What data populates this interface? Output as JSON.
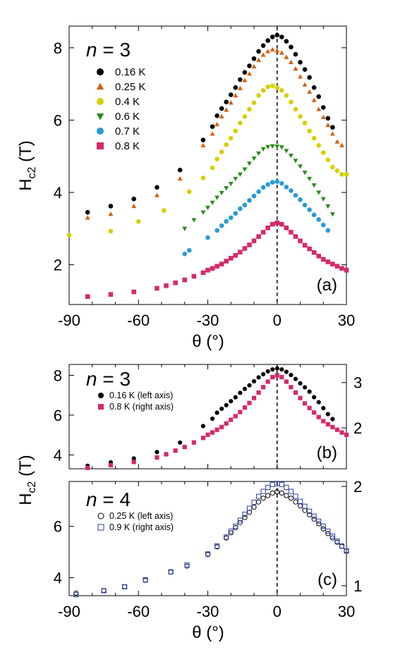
{
  "chart_data": [
    {
      "panel": "(a)",
      "type": "scatter",
      "annotation_prefix": "n",
      "annotation_value": "= 3",
      "xlabel": "θ (°)",
      "ylabel": "Hc2 (T)",
      "xlim": [
        -90,
        30
      ],
      "ylim": [
        0.9,
        8.6
      ],
      "xticks": [
        "-90",
        "-60",
        "-30",
        "0",
        "30"
      ],
      "yticks": [
        "2",
        "4",
        "6",
        "8"
      ],
      "series": [
        {
          "name": "0.16 K",
          "color": "#000000",
          "marker": "circle",
          "x": [
            -82,
            -72,
            -62,
            -52,
            -42,
            -32,
            -28,
            -26,
            -24,
            -22,
            -20,
            -18,
            -16,
            -14,
            -12,
            -10,
            -8,
            -6,
            -4,
            -2,
            0,
            2,
            4,
            6,
            8,
            10,
            12,
            14,
            16,
            18,
            20,
            22,
            24
          ],
          "y": [
            3.45,
            3.62,
            3.82,
            4.14,
            4.62,
            5.45,
            5.82,
            6.12,
            6.32,
            6.5,
            6.7,
            6.9,
            7.12,
            7.32,
            7.5,
            7.7,
            7.9,
            8.06,
            8.2,
            8.3,
            8.35,
            8.3,
            8.18,
            8.02,
            7.82,
            7.6,
            7.4,
            7.18,
            6.9,
            6.65,
            6.35,
            6.05,
            5.8
          ]
        },
        {
          "name": "0.25 K",
          "color": "#d2620f",
          "marker": "triangle-up",
          "x": [
            -82,
            -72,
            -62,
            -52,
            -42,
            -32,
            -28,
            -26,
            -24,
            -22,
            -20,
            -18,
            -16,
            -14,
            -12,
            -10,
            -8,
            -6,
            -4,
            -2,
            0,
            2,
            4,
            6,
            8,
            10,
            12,
            14,
            16,
            18,
            20,
            22,
            24,
            26,
            28
          ],
          "y": [
            3.3,
            3.4,
            3.62,
            3.92,
            4.38,
            5.3,
            5.62,
            5.88,
            6.1,
            6.28,
            6.48,
            6.68,
            6.88,
            7.1,
            7.28,
            7.48,
            7.66,
            7.8,
            7.9,
            7.95,
            7.92,
            7.86,
            7.74,
            7.6,
            7.42,
            7.2,
            6.98,
            6.78,
            6.55,
            6.3,
            6.08,
            5.86,
            5.62,
            5.4,
            5.3
          ]
        },
        {
          "name": "0.4 K",
          "color": "#d4d000",
          "marker": "circle",
          "x": [
            -90,
            -72,
            -60,
            -49,
            -38,
            -32,
            -28,
            -26,
            -24,
            -22,
            -20,
            -18,
            -16,
            -14,
            -12,
            -10,
            -8,
            -6,
            -4,
            -2,
            0,
            2,
            4,
            6,
            8,
            10,
            12,
            14,
            16,
            18,
            20,
            22,
            24,
            26,
            28,
            30
          ],
          "y": [
            2.82,
            2.93,
            3.2,
            3.5,
            4.02,
            4.4,
            4.68,
            4.92,
            5.12,
            5.32,
            5.5,
            5.7,
            5.92,
            6.1,
            6.3,
            6.48,
            6.68,
            6.82,
            6.92,
            6.95,
            6.9,
            6.82,
            6.68,
            6.5,
            6.3,
            6.1,
            5.92,
            5.7,
            5.5,
            5.3,
            5.1,
            4.9,
            4.7,
            4.6,
            4.5,
            4.5
          ]
        },
        {
          "name": "0.6 K",
          "color": "#2a8a1c",
          "marker": "triangle-down",
          "x": [
            -40,
            -36,
            -32,
            -30,
            -28,
            -26,
            -24,
            -22,
            -20,
            -18,
            -16,
            -14,
            -12,
            -10,
            -8,
            -6,
            -4,
            -2,
            0,
            2,
            4,
            6,
            8,
            10,
            12,
            14,
            16,
            18,
            20,
            22,
            24
          ],
          "y": [
            3.0,
            3.24,
            3.45,
            3.58,
            3.72,
            3.86,
            3.99,
            4.12,
            4.24,
            4.38,
            4.5,
            4.64,
            4.8,
            4.94,
            5.08,
            5.2,
            5.26,
            5.28,
            5.27,
            5.25,
            5.15,
            5.02,
            4.88,
            4.72,
            4.55,
            4.38,
            4.2,
            4.0,
            3.82,
            3.62,
            3.4
          ]
        },
        {
          "name": "0.7 K",
          "color": "#2a9ad6",
          "marker": "circle",
          "x": [
            -40,
            -38,
            -30,
            -26,
            -24,
            -22,
            -20,
            -18,
            -16,
            -14,
            -12,
            -10,
            -8,
            -6,
            -4,
            -2,
            0,
            2,
            4,
            6,
            8,
            10,
            12,
            14,
            16,
            18,
            20,
            22
          ],
          "y": [
            2.3,
            2.4,
            2.75,
            2.95,
            3.08,
            3.2,
            3.3,
            3.42,
            3.55,
            3.65,
            3.78,
            3.9,
            4.02,
            4.14,
            4.22,
            4.28,
            4.3,
            4.25,
            4.15,
            4.05,
            3.92,
            3.8,
            3.65,
            3.52,
            3.38,
            3.25,
            3.1,
            2.95
          ]
        },
        {
          "name": "0.8 K",
          "color": "#d42a6a",
          "marker": "square",
          "x": [
            -82,
            -72,
            -62,
            -52,
            -48,
            -44,
            -40,
            -36,
            -32,
            -30,
            -28,
            -26,
            -24,
            -22,
            -20,
            -18,
            -16,
            -14,
            -12,
            -10,
            -8,
            -6,
            -4,
            -2,
            0,
            2,
            4,
            6,
            8,
            10,
            12,
            14,
            16,
            18,
            20,
            22,
            24,
            26,
            28,
            30
          ],
          "y": [
            1.12,
            1.18,
            1.25,
            1.35,
            1.42,
            1.5,
            1.58,
            1.68,
            1.78,
            1.85,
            1.9,
            1.96,
            2.02,
            2.1,
            2.18,
            2.26,
            2.35,
            2.45,
            2.55,
            2.66,
            2.78,
            2.9,
            3.02,
            3.12,
            3.16,
            3.12,
            3.02,
            2.9,
            2.78,
            2.66,
            2.54,
            2.44,
            2.34,
            2.24,
            2.15,
            2.08,
            2.02,
            1.96,
            1.9,
            1.85
          ]
        }
      ]
    },
    {
      "panel": "(b)",
      "type": "scatter",
      "annotation_prefix": "n",
      "annotation_value": "= 3",
      "xlim": [
        -90,
        30
      ],
      "ylim_left": [
        3.3,
        8.55
      ],
      "ylim_right": [
        1.1,
        3.4
      ],
      "yticks_left": [
        "4",
        "6",
        "8"
      ],
      "yticks_right": [
        "2",
        "3"
      ],
      "series": [
        {
          "name": "0.16 K (left axis)",
          "color": "#000000",
          "marker": "circle",
          "axis": "left",
          "x": [
            -82,
            -72,
            -62,
            -52,
            -42,
            -32,
            -28,
            -26,
            -24,
            -22,
            -20,
            -18,
            -16,
            -14,
            -12,
            -10,
            -8,
            -6,
            -4,
            -2,
            0,
            2,
            4,
            6,
            8,
            10,
            12,
            14,
            16,
            18,
            20,
            22,
            24
          ],
          "y": [
            3.45,
            3.62,
            3.82,
            4.14,
            4.62,
            5.45,
            5.82,
            6.12,
            6.32,
            6.5,
            6.7,
            6.9,
            7.12,
            7.32,
            7.5,
            7.7,
            7.9,
            8.06,
            8.2,
            8.3,
            8.35,
            8.3,
            8.18,
            8.02,
            7.82,
            7.6,
            7.4,
            7.18,
            6.9,
            6.65,
            6.35,
            6.05,
            5.8
          ]
        },
        {
          "name": "0.8 K (right axis)",
          "color": "#d42a6a",
          "marker": "square",
          "axis": "right",
          "x": [
            -82,
            -72,
            -62,
            -52,
            -48,
            -44,
            -40,
            -36,
            -32,
            -30,
            -28,
            -26,
            -24,
            -22,
            -20,
            -18,
            -16,
            -14,
            -12,
            -10,
            -8,
            -6,
            -4,
            -2,
            0,
            2,
            4,
            6,
            8,
            10,
            12,
            14,
            16,
            18,
            20,
            22,
            24,
            26,
            28,
            30
          ],
          "y": [
            1.12,
            1.18,
            1.25,
            1.35,
            1.42,
            1.5,
            1.58,
            1.68,
            1.78,
            1.85,
            1.9,
            1.96,
            2.02,
            2.1,
            2.18,
            2.26,
            2.35,
            2.45,
            2.55,
            2.66,
            2.78,
            2.9,
            3.02,
            3.12,
            3.16,
            3.12,
            3.02,
            2.9,
            2.78,
            2.66,
            2.54,
            2.44,
            2.34,
            2.24,
            2.15,
            2.08,
            2.02,
            1.96,
            1.9,
            1.85
          ]
        }
      ]
    },
    {
      "panel": "(c)",
      "type": "scatter",
      "annotation_prefix": "n",
      "annotation_value": "= 4",
      "xlabel": "θ (°)",
      "xlim": [
        -90,
        30
      ],
      "ylim_left": [
        3.3,
        7.75
      ],
      "ylim_right": [
        0.9,
        2.05
      ],
      "xticks": [
        "-90",
        "-60",
        "-30",
        "0",
        "30"
      ],
      "yticks_left": [
        "4",
        "6"
      ],
      "yticks_right": [
        "1",
        "2"
      ],
      "series": [
        {
          "name": "0.25 K (left axis)",
          "color": "#000000",
          "marker": "circle-open",
          "axis": "left",
          "x": [
            -87,
            -75,
            -66,
            -57,
            -46,
            -39,
            -30,
            -26,
            -22,
            -20,
            -18,
            -16,
            -14,
            -12,
            -10,
            -8,
            -6,
            -4,
            -2,
            0,
            2,
            4,
            6,
            8,
            10,
            12,
            14,
            16,
            18,
            20,
            22,
            24,
            26,
            28,
            30
          ],
          "y": [
            3.4,
            3.5,
            3.65,
            3.9,
            4.22,
            4.45,
            4.9,
            5.2,
            5.55,
            5.75,
            5.95,
            6.15,
            6.35,
            6.55,
            6.75,
            6.95,
            7.1,
            7.2,
            7.3,
            7.35,
            7.3,
            7.2,
            7.1,
            6.95,
            6.8,
            6.62,
            6.45,
            6.28,
            6.1,
            5.9,
            5.72,
            5.55,
            5.38,
            5.22,
            5.05
          ]
        },
        {
          "name": "0.9 K (right axis)",
          "color": "#2b3fa0",
          "marker": "square-open",
          "axis": "right",
          "x": [
            -87,
            -75,
            -66,
            -57,
            -46,
            -39,
            -30,
            -26,
            -22,
            -20,
            -18,
            -16,
            -14,
            -12,
            -10,
            -8,
            -6,
            -4,
            -2,
            0,
            2,
            4,
            6,
            8,
            10,
            12,
            14,
            16,
            18,
            20,
            22,
            24,
            26,
            28,
            30
          ],
          "y": [
            0.91,
            0.95,
            0.99,
            1.06,
            1.14,
            1.21,
            1.32,
            1.4,
            1.49,
            1.55,
            1.6,
            1.66,
            1.72,
            1.78,
            1.84,
            1.9,
            1.95,
            1.99,
            2.02,
            2.03,
            2.02,
            1.99,
            1.95,
            1.9,
            1.85,
            1.8,
            1.75,
            1.7,
            1.65,
            1.6,
            1.55,
            1.5,
            1.45,
            1.4,
            1.35
          ]
        }
      ]
    }
  ],
  "shared": {
    "ylabel_b_c": "Hc2 (T)",
    "ylabel_a": "Hc2 (T)",
    "ylabel_main": "H",
    "ylabel_sub": "c2",
    "ylabel_unit": " (T)"
  }
}
